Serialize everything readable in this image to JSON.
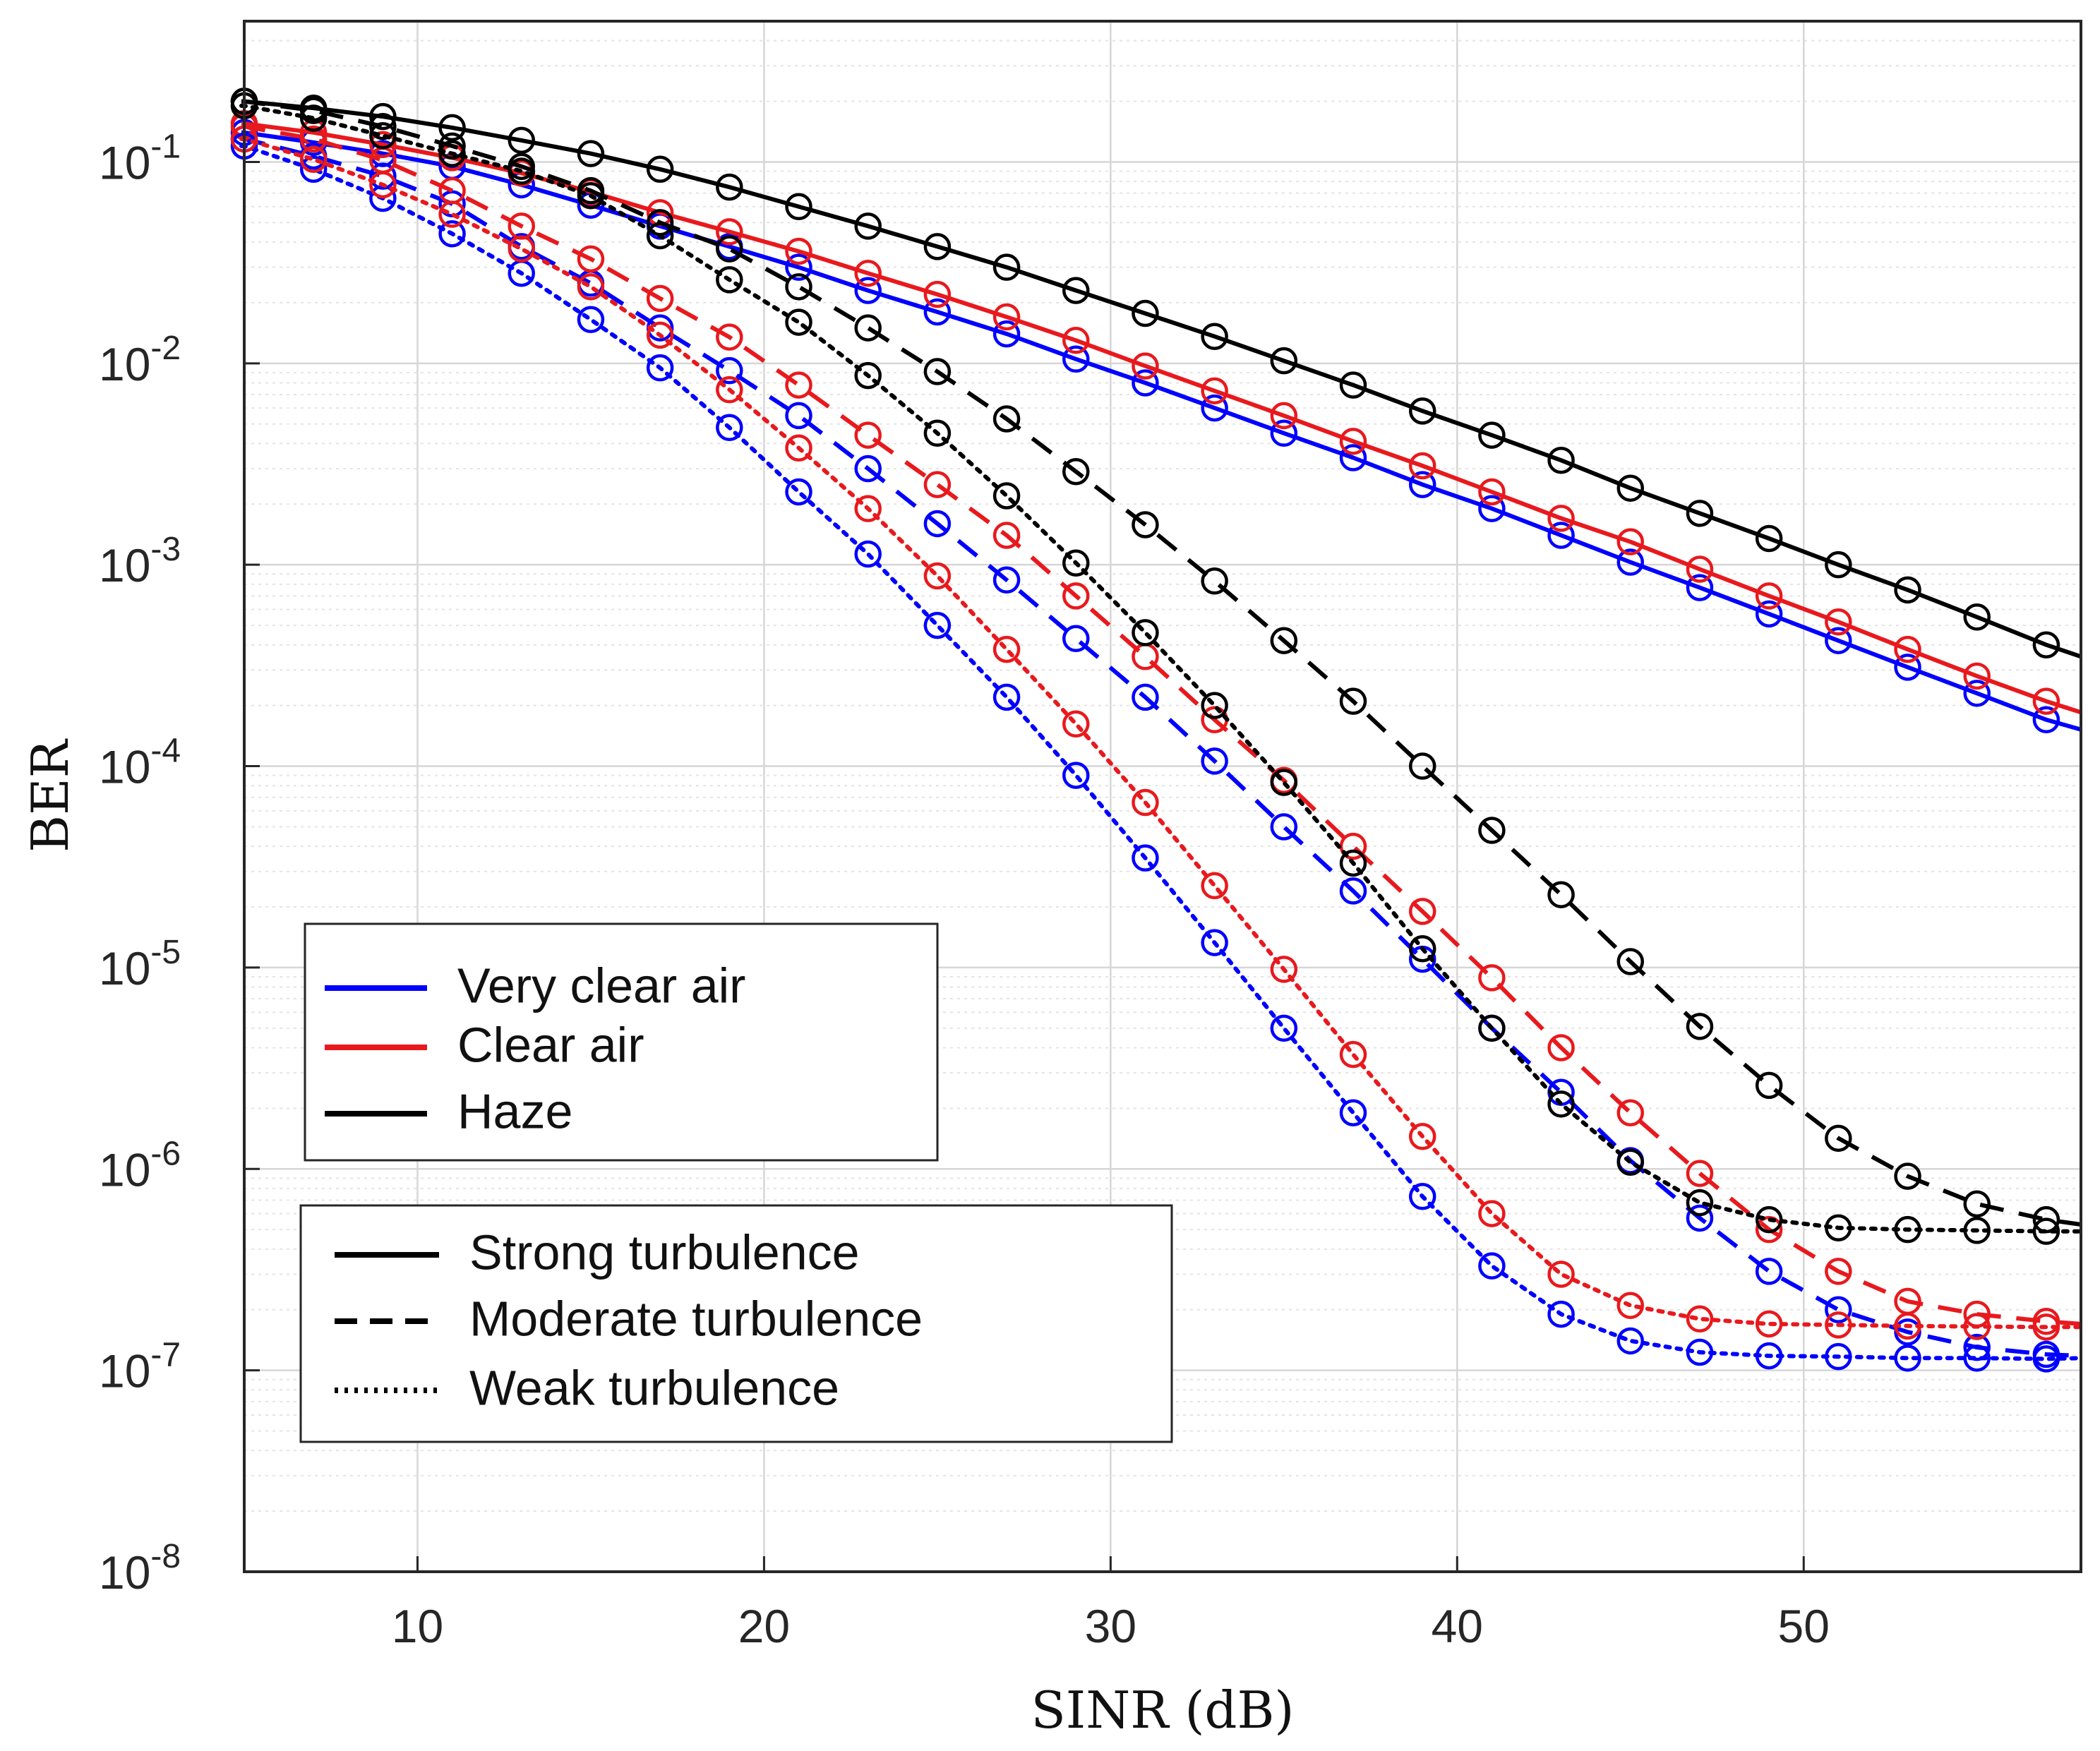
{
  "chart_data": {
    "type": "line",
    "title": "",
    "xlabel": "SINR (dB)",
    "ylabel": "BER",
    "yscale": "log",
    "xlim": [
      5,
      58
    ],
    "ylim": [
      1e-08,
      0.5
    ],
    "grid": true,
    "x_ticks": [
      {
        "value": 10,
        "label": "10"
      },
      {
        "value": 20,
        "label": "20"
      },
      {
        "value": 30,
        "label": "30"
      },
      {
        "value": 40,
        "label": "40"
      },
      {
        "value": 50,
        "label": "50"
      }
    ],
    "y_ticks": [
      {
        "exp": -1,
        "base": "10",
        "sup": "-1"
      },
      {
        "exp": -2,
        "base": "10",
        "sup": "-2"
      },
      {
        "exp": -3,
        "base": "10",
        "sup": "-3"
      },
      {
        "exp": -4,
        "base": "10",
        "sup": "-4"
      },
      {
        "exp": -5,
        "base": "10",
        "sup": "-5"
      },
      {
        "exp": -6,
        "base": "10",
        "sup": "-6"
      },
      {
        "exp": -7,
        "base": "10",
        "sup": "-7"
      },
      {
        "exp": -8,
        "base": "10",
        "sup": "-8"
      }
    ],
    "colors": {
      "very_clear_air": "#0000ff",
      "clear_air": "#e8191d",
      "haze": "#000000"
    },
    "line_end_x": 58,
    "x": [
      5,
      7,
      9,
      11,
      13,
      15,
      17,
      19,
      21,
      23,
      25,
      27,
      29,
      31,
      33,
      35,
      37,
      39,
      41,
      43,
      45,
      47,
      49,
      51,
      53,
      55,
      57
    ],
    "series": [
      {
        "name": "Very clear air - Strong turbulence",
        "color": "very_clear_air",
        "style": "solid",
        "values": [
          0.14,
          0.125,
          0.11,
          0.095,
          0.077,
          0.061,
          0.048,
          0.038,
          0.03,
          0.023,
          0.018,
          0.014,
          0.0105,
          0.008,
          0.006,
          0.0045,
          0.0034,
          0.0025,
          0.0019,
          0.0014,
          0.00103,
          0.00077,
          0.00057,
          0.00042,
          0.00031,
          0.00023,
          0.00017
        ],
        "end_value": 0.000152
      },
      {
        "name": "Clear air - Strong turbulence",
        "color": "clear_air",
        "style": "solid",
        "values": [
          0.155,
          0.14,
          0.122,
          0.105,
          0.088,
          0.071,
          0.056,
          0.045,
          0.036,
          0.028,
          0.022,
          0.017,
          0.013,
          0.0097,
          0.0073,
          0.0055,
          0.0041,
          0.0031,
          0.0023,
          0.0017,
          0.0013,
          0.00095,
          0.0007,
          0.00052,
          0.00038,
          0.00028,
          0.00021
        ],
        "end_value": 0.000185
      },
      {
        "name": "Haze - Strong turbulence",
        "color": "haze",
        "style": "solid",
        "values": [
          0.2,
          0.185,
          0.168,
          0.148,
          0.128,
          0.11,
          0.092,
          0.075,
          0.06,
          0.048,
          0.038,
          0.03,
          0.023,
          0.0177,
          0.0136,
          0.0103,
          0.0078,
          0.0058,
          0.0044,
          0.0033,
          0.0024,
          0.0018,
          0.00135,
          0.001,
          0.00075,
          0.00055,
          0.0004
        ],
        "end_value": 0.00035
      },
      {
        "name": "Very clear air - Moderate turbulence",
        "color": "very_clear_air",
        "style": "dashed",
        "values": [
          0.13,
          0.107,
          0.085,
          0.062,
          0.038,
          0.025,
          0.015,
          0.0092,
          0.0055,
          0.003,
          0.0016,
          0.00084,
          0.00043,
          0.00022,
          0.000106,
          5e-05,
          2.4e-05,
          1.1e-05,
          5e-06,
          2.4e-06,
          1.1e-06,
          5.7e-07,
          3.1e-07,
          2e-07,
          1.55e-07,
          1.3e-07,
          1.2e-07
        ],
        "end_value": 1.18e-07
      },
      {
        "name": "Clear air - Moderate turbulence",
        "color": "clear_air",
        "style": "dashed",
        "values": [
          0.15,
          0.13,
          0.102,
          0.072,
          0.048,
          0.033,
          0.021,
          0.0135,
          0.0078,
          0.0044,
          0.0025,
          0.0014,
          0.0007,
          0.00035,
          0.00017,
          8.5e-05,
          4e-05,
          1.9e-05,
          8.9e-06,
          4e-06,
          1.9e-06,
          9.5e-07,
          5e-07,
          3.1e-07,
          2.2e-07,
          1.9e-07,
          1.75e-07
        ],
        "end_value": 1.7e-07
      },
      {
        "name": "Haze - Moderate turbulence",
        "color": "haze",
        "style": "dashed",
        "values": [
          0.2,
          0.18,
          0.15,
          0.12,
          0.095,
          0.072,
          0.05,
          0.037,
          0.024,
          0.015,
          0.0091,
          0.0053,
          0.0029,
          0.00158,
          0.00083,
          0.00042,
          0.00021,
          0.0001,
          4.8e-05,
          2.3e-05,
          1.07e-05,
          5.1e-06,
          2.6e-06,
          1.42e-06,
          9.2e-07,
          6.7e-07,
          5.6e-07
        ],
        "end_value": 5.3e-07
      },
      {
        "name": "Very clear air - Weak turbulence",
        "color": "very_clear_air",
        "style": "dotted",
        "values": [
          0.12,
          0.092,
          0.066,
          0.044,
          0.028,
          0.0165,
          0.0095,
          0.0048,
          0.0023,
          0.00113,
          0.0005,
          0.00022,
          9e-05,
          3.5e-05,
          1.33e-05,
          5e-06,
          1.9e-06,
          7.3e-07,
          3.3e-07,
          1.9e-07,
          1.4e-07,
          1.23e-07,
          1.18e-07,
          1.17e-07,
          1.15e-07,
          1.15e-07,
          1.14e-07
        ],
        "end_value": 1.15e-07
      },
      {
        "name": "Clear air - Weak turbulence",
        "color": "clear_air",
        "style": "dotted",
        "values": [
          0.13,
          0.103,
          0.077,
          0.055,
          0.037,
          0.024,
          0.0138,
          0.0074,
          0.0038,
          0.0019,
          0.00088,
          0.00038,
          0.000162,
          6.6e-05,
          2.55e-05,
          9.8e-06,
          3.7e-06,
          1.45e-06,
          6e-07,
          3e-07,
          2.1e-07,
          1.8e-07,
          1.7e-07,
          1.68e-07,
          1.66e-07,
          1.65e-07,
          1.64e-07
        ],
        "end_value": 1.64e-07
      },
      {
        "name": "Haze - Weak turbulence",
        "color": "haze",
        "style": "dotted",
        "values": [
          0.19,
          0.165,
          0.135,
          0.11,
          0.09,
          0.068,
          0.043,
          0.026,
          0.016,
          0.0087,
          0.0045,
          0.0022,
          0.00102,
          0.00046,
          0.0002,
          8.3e-05,
          3.3e-05,
          1.24e-05,
          5e-06,
          2.1e-06,
          1.08e-06,
          6.8e-07,
          5.6e-07,
          5.1e-07,
          5e-07,
          4.95e-07,
          4.9e-07
        ],
        "end_value": 4.9e-07
      }
    ],
    "legend_color": [
      {
        "label": "Very clear air",
        "color": "very_clear_air"
      },
      {
        "label": "Clear air",
        "color": "clear_air"
      },
      {
        "label": "Haze",
        "color": "haze"
      }
    ],
    "legend_style": [
      {
        "label": "Strong turbulence",
        "style": "solid"
      },
      {
        "label": "Moderate turbulence",
        "style": "dashed"
      },
      {
        "label": "Weak turbulence",
        "style": "dotted"
      }
    ]
  }
}
